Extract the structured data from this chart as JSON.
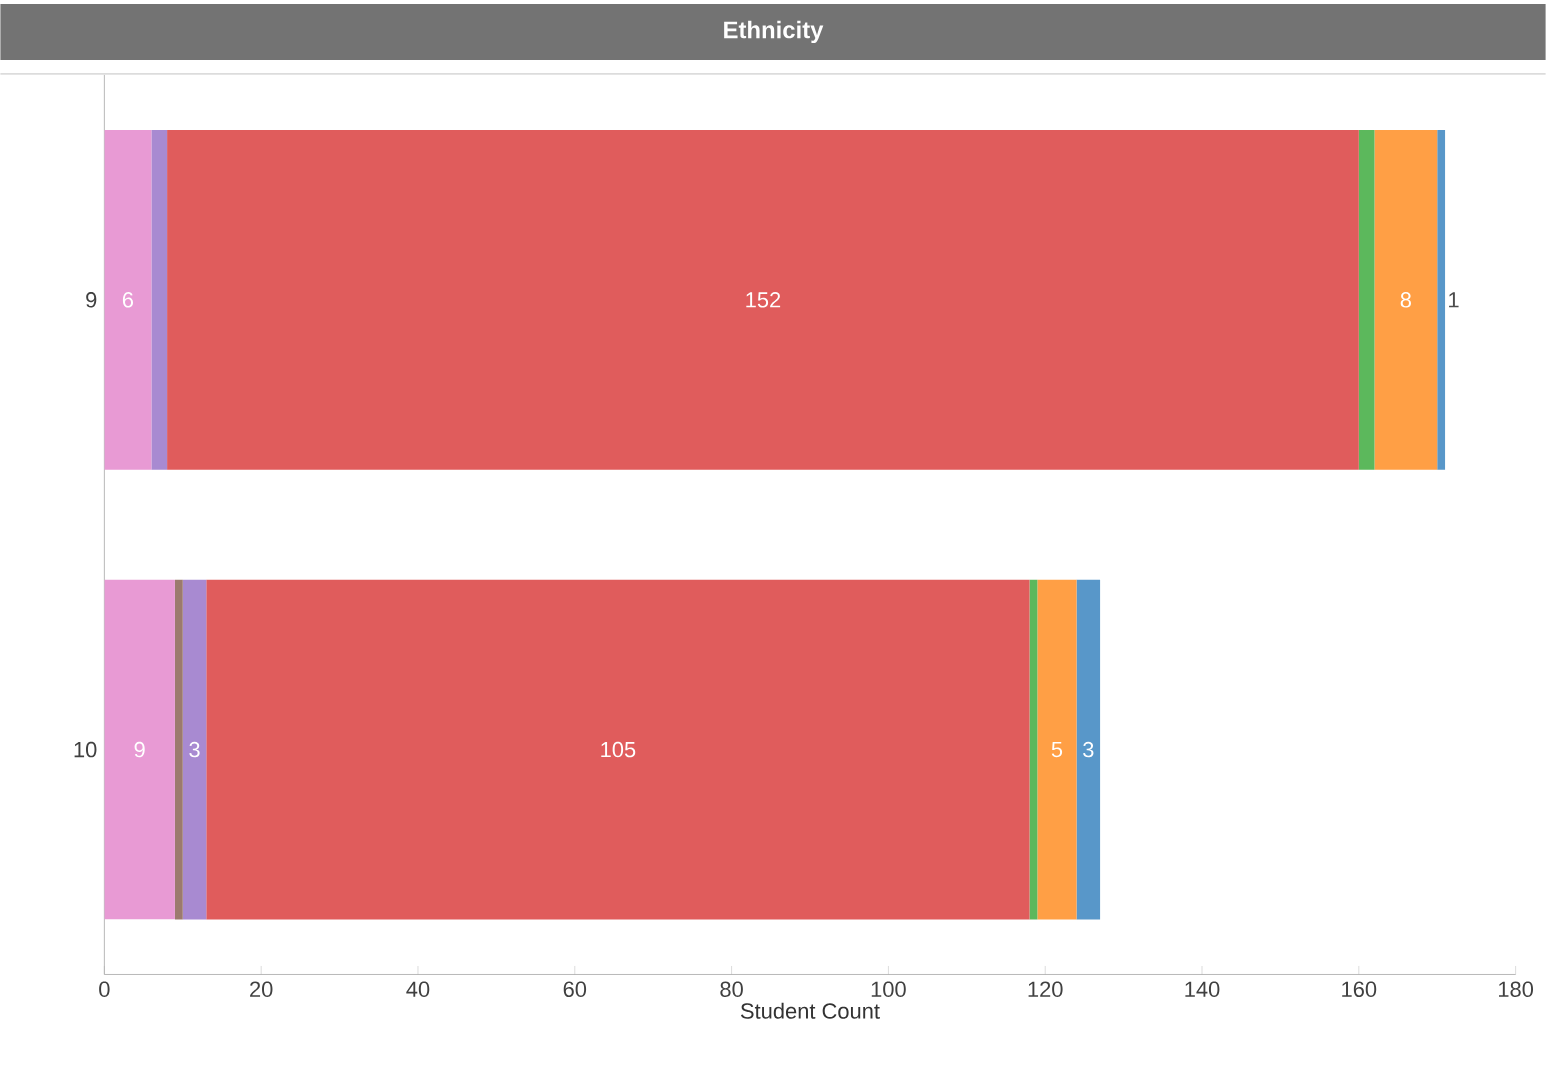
{
  "chart_data": {
    "type": "bar",
    "title": "Ethnicity",
    "xlabel": "Student Count",
    "orientation": "horizontal",
    "stacked": true,
    "categories": [
      "9",
      "10"
    ],
    "series": [
      {
        "color": "#e89ad4",
        "values": [
          6,
          9
        ],
        "value_labels": [
          "6",
          "9"
        ]
      },
      {
        "color": "#9c7a6e",
        "values": [
          0,
          1
        ],
        "value_labels": [
          null,
          null
        ]
      },
      {
        "color": "#a88ad1",
        "values": [
          2,
          3
        ],
        "value_labels": [
          null,
          "3"
        ]
      },
      {
        "color": "#e05c5c",
        "values": [
          152,
          105
        ],
        "value_labels": [
          "152",
          "105"
        ]
      },
      {
        "color": "#5cb85c",
        "values": [
          2,
          1
        ],
        "value_labels": [
          null,
          null
        ]
      },
      {
        "color": "#ff9f45",
        "values": [
          8,
          5
        ],
        "value_labels": [
          "8",
          "5"
        ]
      },
      {
        "color": "#5897c9",
        "values": [
          1,
          3
        ],
        "value_labels": [
          "1",
          "3"
        ]
      }
    ],
    "xlim": [
      0,
      180
    ],
    "xticks": [
      0,
      20,
      40,
      60,
      80,
      100,
      120,
      140,
      160,
      180
    ]
  }
}
